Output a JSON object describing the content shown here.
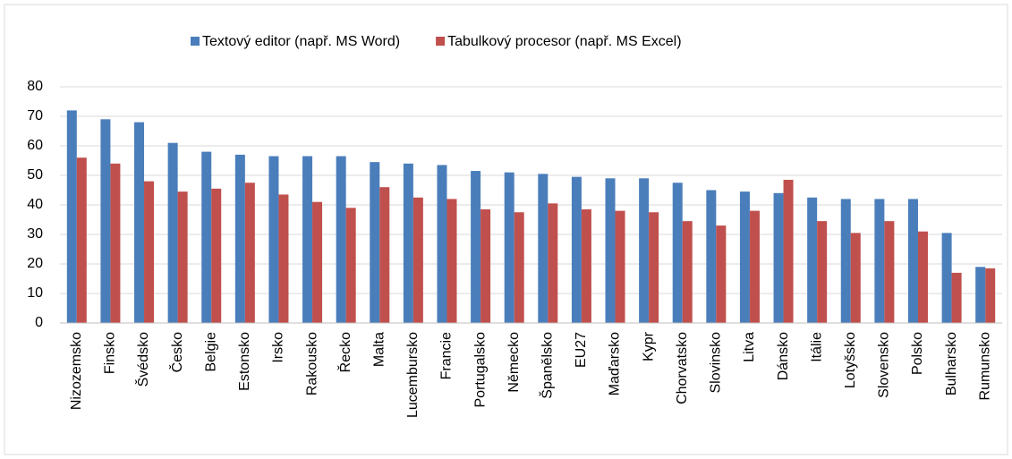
{
  "chart_data": {
    "type": "bar",
    "categories": [
      "Nizozemsko",
      "Finsko",
      "Švédsko",
      "Česko",
      "Belgie",
      "Estonsko",
      "Irsko",
      "Rakousko",
      "Řecko",
      "Malta",
      "Lucembursko",
      "Francie",
      "Portugalsko",
      "Německo",
      "Španělsko",
      "EU27",
      "Maďarsko",
      "Kypr",
      "Chorvatsko",
      "Slovinsko",
      "Litva",
      "Dánsko",
      "Itálie",
      "Lotyšsko",
      "Slovensko",
      "Polsko",
      "Bulharsko",
      "Rumunsko"
    ],
    "series": [
      {
        "name": "Textový editor (např. MS Word)",
        "color": "#4a7ebb",
        "values": [
          72,
          69,
          68,
          61,
          58,
          57,
          56.5,
          56.5,
          56.5,
          54.5,
          54,
          53.5,
          51.5,
          51,
          50.5,
          49.5,
          49,
          49,
          47.5,
          45,
          44.5,
          44,
          42.5,
          42,
          42,
          42,
          30.5,
          19
        ]
      },
      {
        "name": "Tabulkový procesor (např. MS Excel)",
        "color": "#c0504d",
        "values": [
          56,
          54,
          48,
          44.5,
          45.5,
          47.5,
          43.5,
          41,
          39,
          46,
          42.5,
          42,
          38.5,
          37.5,
          40.5,
          38.5,
          38,
          37.5,
          34.5,
          33,
          38,
          48.5,
          34.5,
          30.5,
          34.5,
          31,
          17,
          18.5
        ]
      }
    ],
    "ylim": [
      0,
      80
    ],
    "yticks": [
      0,
      10,
      20,
      30,
      40,
      50,
      60,
      70,
      80
    ],
    "grid": true,
    "legend": "top"
  }
}
